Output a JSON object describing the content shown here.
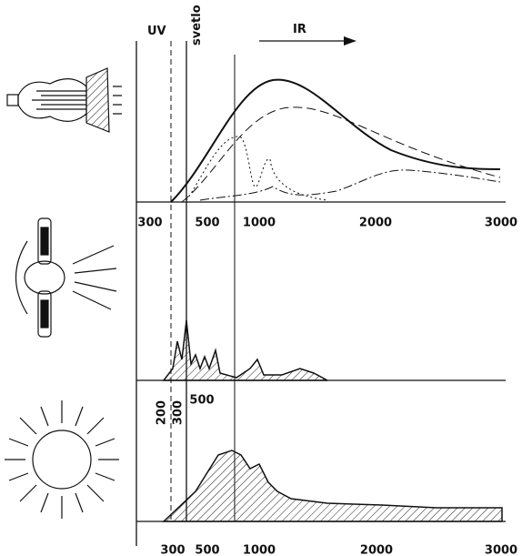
{
  "labels": {
    "uv": "UV",
    "visible": "svetlo",
    "ir": "IR"
  },
  "panels": [
    {
      "ticks": [
        "300",
        "500",
        "1000",
        "2000",
        "3000"
      ]
    },
    {
      "ticks": [
        "200",
        "300",
        "500"
      ]
    },
    {
      "ticks": [
        "300",
        "500",
        "1000",
        "2000",
        "3000"
      ]
    }
  ]
}
